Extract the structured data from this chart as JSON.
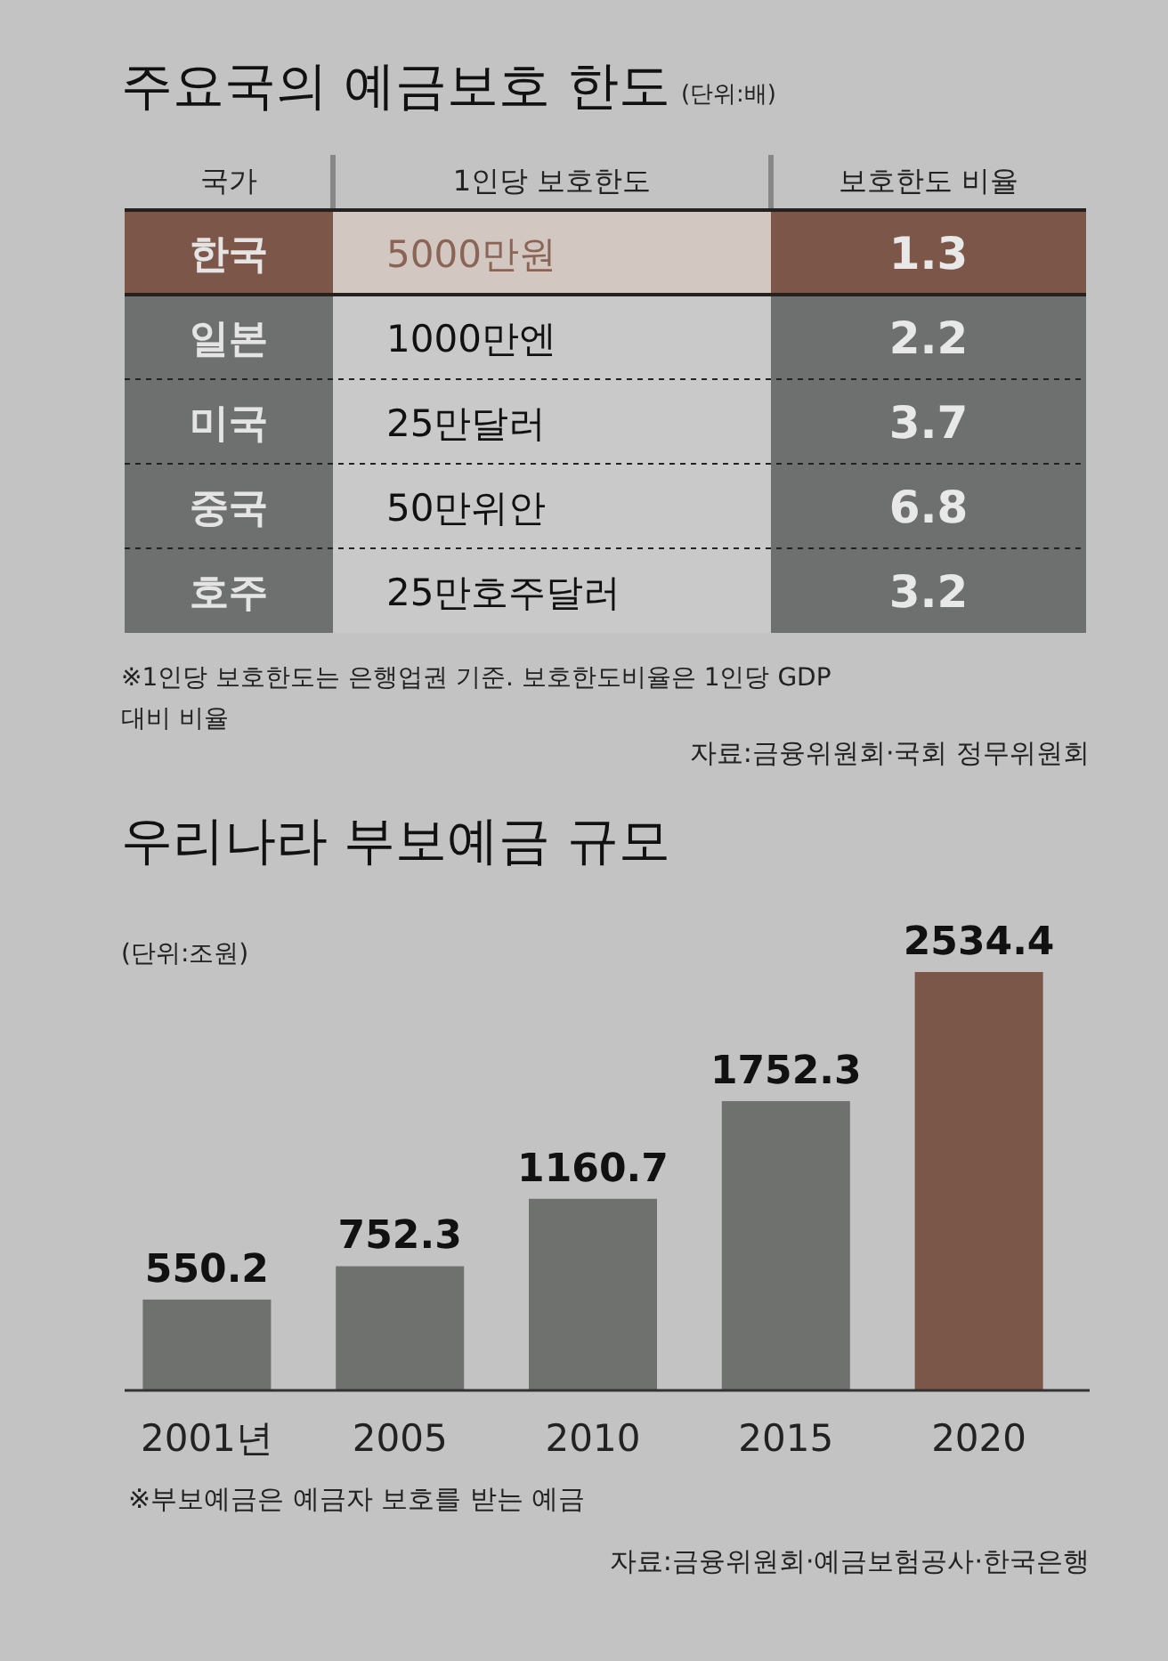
{
  "chart_data": [
    {
      "type": "other",
      "title": "주요국의 예금보호 한도",
      "subtitle": "(단위:배)",
      "ylabel": "국가",
      "y2label": "1인당 보호한도",
      "categories": [
        "한국",
        "일본",
        "미국",
        "중국",
        "호주"
      ],
      "y2_categories": [
        "5000만원",
        "1000만엔",
        "25만달러",
        "50만위안",
        "25만호주달러"
      ],
      "series": [
        {
          "name": "보호한도 비율",
          "values": [
            1.3,
            2.2,
            3.7,
            6.8,
            3.2
          ]
        }
      ],
      "data_labels": true,
      "colors": [
        "#7b5649",
        "#6e706f",
        "#6e706f",
        "#6e706f",
        "#6e706f"
      ],
      "annotations": [
        "※1인당 보호한도는 은행업권 기준. 보호한도비율은 1인당 GDP 대비 비율",
        "자료:금융위원회·국회 정무위원회"
      ]
    },
    {
      "type": "bar",
      "title": "우리나라 부보예금 규모",
      "subtitle": "(단위:조원)",
      "categories": [
        "2001년",
        "2005",
        "2010",
        "2015",
        "2020"
      ],
      "values": [
        550.2,
        752.3,
        1160.7,
        1752.3,
        2534.4
      ],
      "colors": [
        "#6f716f",
        "#6f716f",
        "#6f716f",
        "#6f716f",
        "#7b5749"
      ],
      "data_labels": true,
      "annotations": [
        "※부보예금은 예금자 보호를 받는 예금",
        "자료:금융위원회·예금보험공사·한국은행"
      ]
    }
  ]
}
